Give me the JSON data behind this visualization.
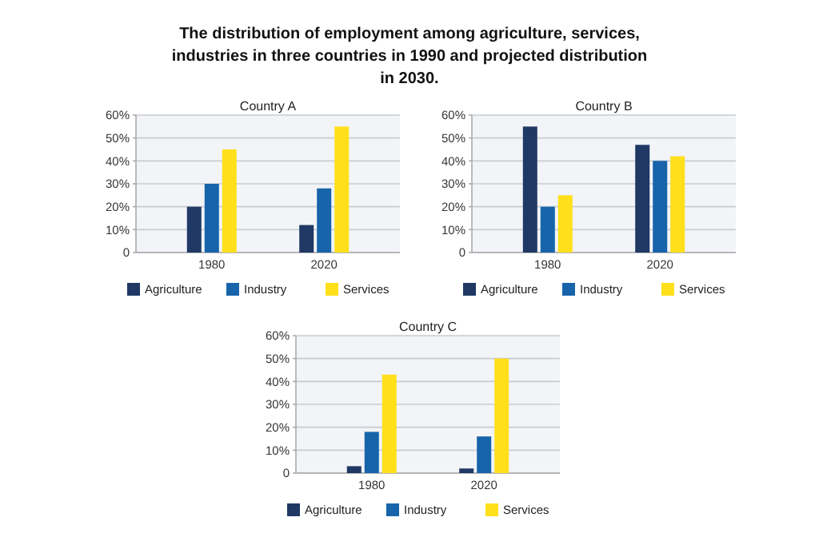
{
  "chart_data": [
    {
      "type": "other",
      "title": "The distribution of employment among agriculture, services, industries in three countries in 1990 and projected distribution in 2030."
    },
    {
      "type": "bar",
      "title": "Country A",
      "categories": [
        "1980",
        "2020"
      ],
      "series": [
        {
          "name": "Agriculture",
          "color": "#1f3864",
          "values": [
            20,
            12
          ]
        },
        {
          "name": "Industry",
          "color": "#1764ab",
          "values": [
            30,
            28
          ]
        },
        {
          "name": "Services",
          "color": "#ffe01b",
          "values": [
            45,
            55
          ]
        }
      ],
      "ylim": [
        0,
        60
      ],
      "yticks": [
        {
          "value": 0,
          "label": "0"
        },
        {
          "value": 10,
          "label": "10%"
        },
        {
          "value": 20,
          "label": "20%"
        },
        {
          "value": 30,
          "label": "30%"
        },
        {
          "value": 40,
          "label": "40%"
        },
        {
          "value": 50,
          "label": "50%"
        },
        {
          "value": 60,
          "label": "60%"
        }
      ],
      "grid": "y",
      "legend": "bottom"
    },
    {
      "type": "bar",
      "title": "Country B",
      "categories": [
        "1980",
        "2020"
      ],
      "series": [
        {
          "name": "Agriculture",
          "color": "#1f3864",
          "values": [
            55,
            47
          ]
        },
        {
          "name": "Industry",
          "color": "#1764ab",
          "values": [
            20,
            40
          ]
        },
        {
          "name": "Services",
          "color": "#ffe01b",
          "values": [
            25,
            42
          ]
        }
      ],
      "ylim": [
        0,
        60
      ],
      "yticks": [
        {
          "value": 0,
          "label": "0"
        },
        {
          "value": 10,
          "label": "10%"
        },
        {
          "value": 20,
          "label": "20%"
        },
        {
          "value": 30,
          "label": "30%"
        },
        {
          "value": 40,
          "label": "40%"
        },
        {
          "value": 50,
          "label": "50%"
        },
        {
          "value": 60,
          "label": "60%"
        }
      ],
      "grid": "y",
      "legend": "bottom"
    },
    {
      "type": "bar",
      "title": "Country C",
      "categories": [
        "1980",
        "2020"
      ],
      "series": [
        {
          "name": "Agriculture",
          "color": "#1f3864",
          "values": [
            3,
            2
          ]
        },
        {
          "name": "Industry",
          "color": "#1764ab",
          "values": [
            18,
            16
          ]
        },
        {
          "name": "Services",
          "color": "#ffe01b",
          "values": [
            43,
            50
          ]
        }
      ],
      "ylim": [
        0,
        60
      ],
      "yticks": [
        {
          "value": 0,
          "label": "0"
        },
        {
          "value": 10,
          "label": "10%"
        },
        {
          "value": 20,
          "label": "20%"
        },
        {
          "value": 30,
          "label": "30%"
        },
        {
          "value": 40,
          "label": "40%"
        },
        {
          "value": 50,
          "label": "50%"
        },
        {
          "value": 60,
          "label": "60%"
        }
      ],
      "grid": "y",
      "legend": "bottom"
    }
  ]
}
